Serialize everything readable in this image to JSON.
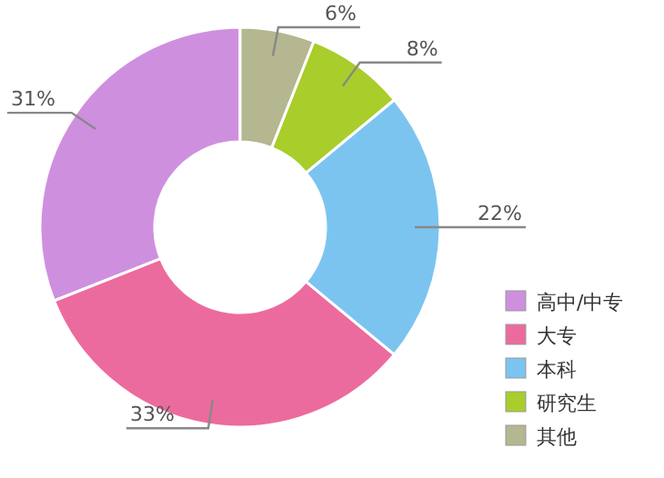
{
  "chart_data": {
    "type": "donut",
    "categories": [
      "高中/中专",
      "大专",
      "本科",
      "研究生",
      "其他"
    ],
    "values": [
      31,
      33,
      22,
      8,
      6
    ],
    "value_labels": [
      "31%",
      "33%",
      "22%",
      "8%",
      "6%"
    ],
    "colors": [
      "#cf8fdf",
      "#ec6b9e",
      "#7cc4f0",
      "#a9cd2b",
      "#b4b78f"
    ],
    "legend": "bottom right"
  }
}
